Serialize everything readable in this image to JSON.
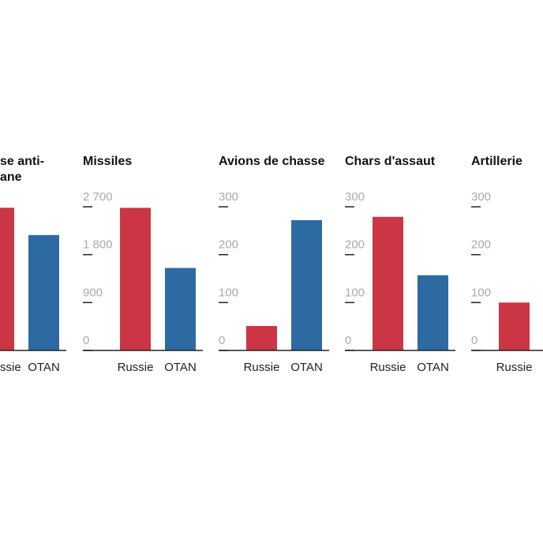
{
  "chart_data": [
    {
      "type": "bar",
      "title_lines": [
        "se anti-",
        "ane"
      ],
      "categories": [
        "ssie",
        "OTAN"
      ],
      "values": [
        298,
        241
      ],
      "colors": [
        "#cc3543",
        "#2d6aa3"
      ],
      "ylim": [
        0,
        300
      ]
    },
    {
      "type": "bar",
      "title": "Missiles",
      "categories": [
        "Russie",
        "OTAN"
      ],
      "values": [
        2680,
        1550
      ],
      "colors": [
        "#cc3543",
        "#2d6aa3"
      ],
      "ylim": [
        0,
        2700
      ],
      "yticks": [
        {
          "value": 0,
          "label": "0"
        },
        {
          "value": 900,
          "label": "900"
        },
        {
          "value": 1800,
          "label": "1 800"
        },
        {
          "value": 2700,
          "label": "2 700"
        }
      ]
    },
    {
      "type": "bar",
      "title": "Avions de chasse",
      "categories": [
        "Russie",
        "OTAN"
      ],
      "values": [
        51,
        272
      ],
      "colors": [
        "#cc3543",
        "#2d6aa3"
      ],
      "ylim": [
        0,
        300
      ],
      "yticks": [
        0,
        100,
        200,
        300
      ]
    },
    {
      "type": "bar",
      "title": "Chars d'assaut",
      "categories": [
        "Russie",
        "OTAN"
      ],
      "values": [
        279,
        157
      ],
      "colors": [
        "#cc3543",
        "#2d6aa3"
      ],
      "ylim": [
        0,
        300
      ],
      "yticks": [
        0,
        100,
        200,
        300
      ]
    },
    {
      "type": "bar",
      "title": "Artillerie",
      "categories": [
        "Russie"
      ],
      "values": [
        100
      ],
      "colors": [
        "#cc3543"
      ],
      "ylim": [
        0,
        300
      ],
      "yticks": [
        0,
        100,
        200,
        300
      ]
    }
  ]
}
